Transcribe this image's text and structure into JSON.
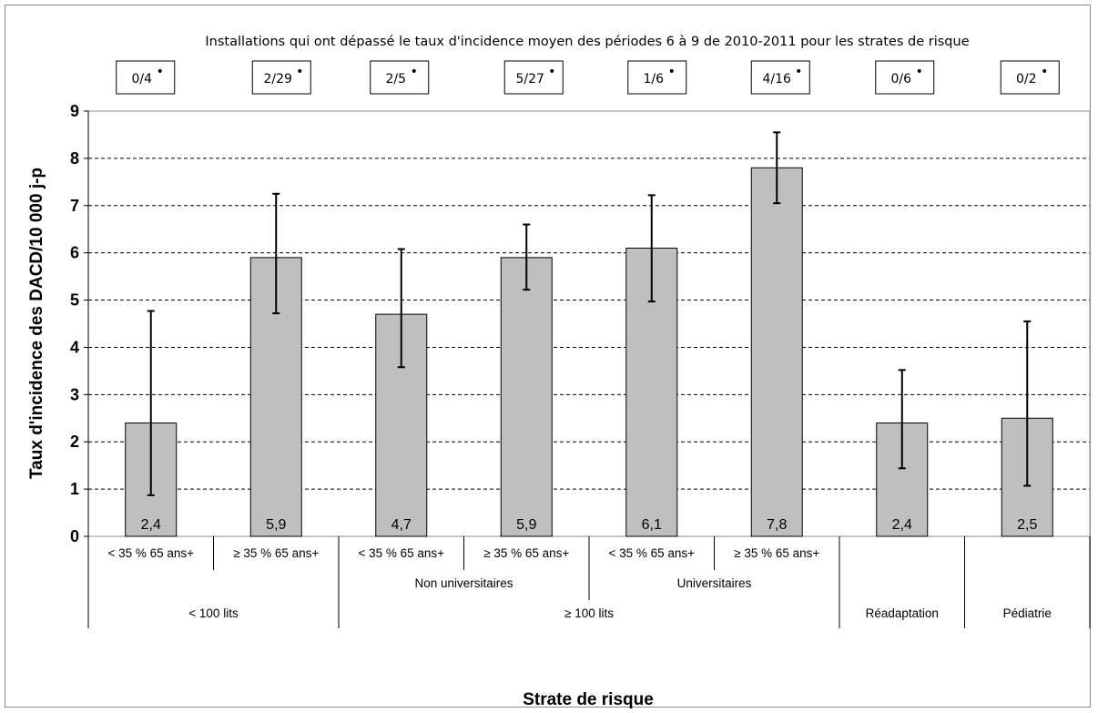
{
  "chart_data": {
    "type": "bar",
    "title": "Installations qui ont dépassé le taux d'incidence moyen des périodes 6 à 9 de 2010-2011 pour les strates de risque",
    "xlabel": "Strate de risque",
    "ylabel": "Taux d'incidence des  DACD/10 000 j-p",
    "ylim": [
      0,
      9
    ],
    "yticks": [
      "0",
      "1",
      "2",
      "3",
      "4",
      "5",
      "6",
      "7",
      "8",
      "9"
    ],
    "grid": "horizontal-dashed",
    "bar_color": "#bfbfbf",
    "categories": [
      "< 35 % 65 ans+",
      "≥ 35 % 65 ans+",
      "< 35 % 65 ans+",
      "≥ 35 % 65 ans+",
      "< 35 % 65 ans+",
      "≥ 35 % 65 ans+",
      "",
      ""
    ],
    "values": [
      2.4,
      5.9,
      4.7,
      5.9,
      6.1,
      7.8,
      2.4,
      2.5
    ],
    "value_labels": [
      "2,4",
      "5,9",
      "4,7",
      "5,9",
      "6,1",
      "7,8",
      "2,4",
      "2,5"
    ],
    "error_low": [
      0.87,
      4.72,
      3.58,
      5.22,
      4.97,
      7.05,
      1.44,
      1.07
    ],
    "error_high": [
      4.77,
      7.25,
      6.08,
      6.6,
      7.22,
      8.55,
      3.52,
      4.55
    ],
    "exceed_labels": [
      "0/4",
      "2/29",
      "2/5",
      "5/27",
      "1/6",
      "4/16",
      "0/6",
      "0/2"
    ],
    "exceed_marker": "•",
    "group_level2": [
      {
        "label": "",
        "span": [
          0,
          1
        ]
      },
      {
        "label": "Non universitaires",
        "span": [
          2,
          3
        ]
      },
      {
        "label": "Universitaires",
        "span": [
          4,
          5
        ]
      },
      {
        "label": "",
        "span": [
          6,
          6
        ]
      },
      {
        "label": "",
        "span": [
          7,
          7
        ]
      }
    ],
    "group_level3": [
      {
        "label": "< 100 lits",
        "span": [
          0,
          1
        ]
      },
      {
        "label": "≥ 100 lits",
        "span": [
          2,
          5
        ]
      },
      {
        "label": "Réadaptation",
        "span": [
          6,
          6
        ]
      },
      {
        "label": "Pédiatrie",
        "span": [
          7,
          7
        ]
      }
    ]
  }
}
